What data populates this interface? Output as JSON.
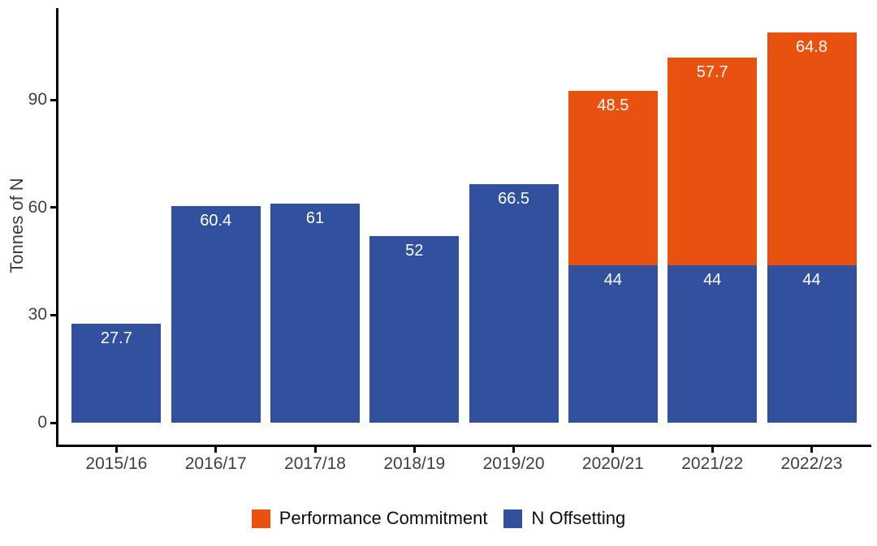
{
  "chart_data": {
    "type": "bar",
    "stacked": true,
    "title": "",
    "xlabel": "",
    "ylabel": "Tonnes of N",
    "categories": [
      "2015/16",
      "2016/17",
      "2017/18",
      "2018/19",
      "2019/20",
      "2020/21",
      "2021/22",
      "2022/23"
    ],
    "series": [
      {
        "name": "N Offsetting",
        "color": "#31519E",
        "values": [
          27.7,
          60.4,
          61,
          52,
          66.5,
          44,
          44,
          44
        ],
        "labels": [
          "27.7",
          "60.4",
          "61",
          "52",
          "66.5",
          "44",
          "44",
          "44"
        ]
      },
      {
        "name": "Performance Commitment",
        "color": "#E8520E",
        "values": [
          0,
          0,
          0,
          0,
          0,
          48.5,
          57.7,
          64.8
        ],
        "labels": [
          "",
          "",
          "",
          "",
          "",
          "48.5",
          "57.7",
          "64.8"
        ]
      }
    ],
    "yticks": [
      0,
      30,
      60,
      90
    ],
    "ylim": [
      -6,
      116
    ],
    "grid": false,
    "bar_label_color": "#ffffff",
    "legend_position": "bottom",
    "legend": [
      {
        "label": "Performance Commitment",
        "color": "#E8520E"
      },
      {
        "label": "N Offsetting",
        "color": "#31519E"
      }
    ]
  },
  "axis": {
    "line_color": "#000000",
    "text_color": "#3f3f3f"
  }
}
